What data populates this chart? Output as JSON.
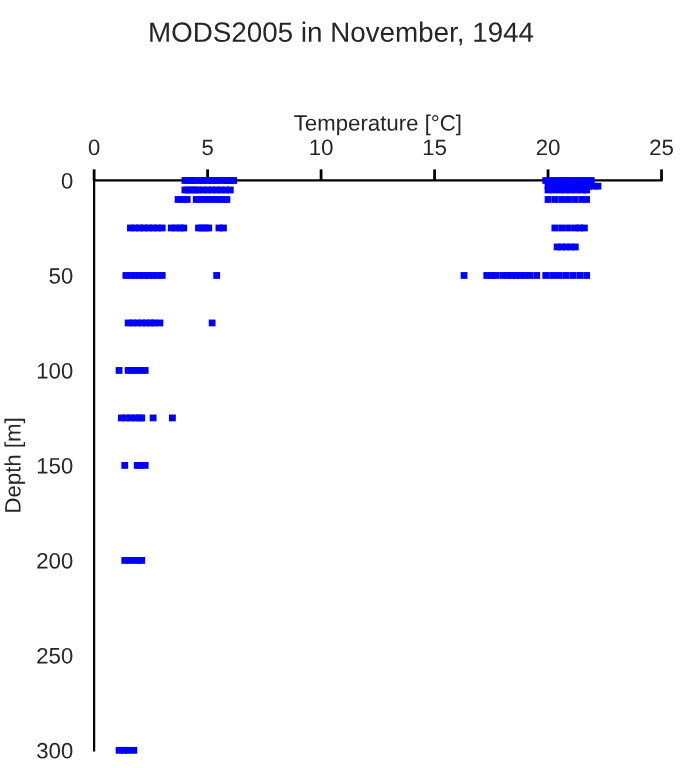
{
  "chart_data": {
    "type": "scatter",
    "title": "MODS2005 in November, 1944",
    "xlabel": "Temperature [°C]",
    "ylabel": "Depth [m]",
    "xlim": [
      0,
      25
    ],
    "xticks": [
      0,
      5,
      10,
      15,
      20,
      25
    ],
    "ylim": [
      300,
      0
    ],
    "yticks": [
      0,
      50,
      100,
      150,
      200,
      250,
      300
    ],
    "grid": false,
    "marker": "square",
    "series": [
      {
        "color": "#0000ff",
        "x": [
          4.0,
          4.15,
          4.3,
          4.45,
          4.7,
          4.8,
          5.0,
          5.15,
          5.3,
          5.45,
          5.7,
          5.85,
          6.0,
          6.15,
          19.9,
          20.1,
          20.3,
          20.5,
          20.7,
          20.9,
          21.1,
          21.3,
          21.5,
          21.7,
          21.9,
          20.0,
          20.2,
          20.4,
          20.6,
          20.8,
          21.0,
          21.2,
          21.4,
          21.6,
          21.8,
          22.0,
          22.2,
          4.0,
          4.15,
          4.3,
          4.45,
          4.6,
          4.8,
          5.0,
          5.2,
          5.4,
          5.6,
          5.8,
          6.0,
          20.0,
          20.25,
          20.5,
          20.75,
          21.0,
          21.25,
          21.5,
          21.7,
          3.7,
          3.9,
          4.1,
          4.5,
          4.7,
          4.9,
          5.1,
          5.3,
          5.5,
          5.7,
          5.85,
          20.0,
          20.3,
          20.6,
          20.9,
          21.2,
          21.5,
          21.7,
          1.6,
          1.8,
          2.0,
          2.2,
          2.4,
          2.6,
          2.8,
          3.0,
          3.4,
          3.6,
          3.8,
          3.95,
          4.6,
          4.75,
          4.9,
          5.05,
          5.5,
          5.7,
          20.3,
          20.6,
          20.9,
          21.2,
          21.4,
          21.6,
          20.4,
          20.6,
          20.8,
          21.0,
          21.2,
          1.4,
          1.6,
          1.8,
          2.0,
          2.2,
          2.4,
          2.6,
          2.8,
          3.0,
          5.4,
          16.3,
          17.3,
          17.5,
          17.7,
          18.0,
          18.2,
          18.4,
          18.6,
          18.8,
          19.0,
          19.2,
          19.5,
          19.9,
          20.2,
          20.5,
          20.8,
          21.1,
          21.4,
          21.7,
          1.5,
          1.7,
          1.9,
          2.1,
          2.3,
          2.5,
          2.65,
          2.9,
          5.2,
          1.1,
          1.5,
          1.7,
          1.9,
          2.1,
          2.25,
          1.2,
          1.4,
          1.6,
          1.8,
          2.0,
          2.1,
          2.6,
          3.45,
          1.35,
          1.9,
          2.05,
          2.25,
          1.35,
          1.55,
          1.75,
          1.95,
          2.1,
          1.1,
          1.3,
          1.5,
          1.75
        ],
        "values": [
          0,
          0,
          0,
          0,
          0,
          0,
          0,
          0,
          0,
          0,
          0,
          0,
          0,
          0,
          0,
          0,
          0,
          0,
          0,
          0,
          0,
          0,
          0,
          0,
          0,
          3,
          3,
          3,
          3,
          3,
          3,
          3,
          3,
          3,
          3,
          3,
          3,
          5,
          5,
          5,
          5,
          5,
          5,
          5,
          5,
          5,
          5,
          5,
          5,
          5,
          5,
          5,
          5,
          5,
          5,
          5,
          5,
          10,
          10,
          10,
          10,
          10,
          10,
          10,
          10,
          10,
          10,
          10,
          10,
          10,
          10,
          10,
          10,
          10,
          10,
          25,
          25,
          25,
          25,
          25,
          25,
          25,
          25,
          25,
          25,
          25,
          25,
          25,
          25,
          25,
          25,
          25,
          25,
          25,
          25,
          25,
          25,
          25,
          25,
          35,
          35,
          35,
          35,
          35,
          50,
          50,
          50,
          50,
          50,
          50,
          50,
          50,
          50,
          50,
          50,
          50,
          50,
          50,
          50,
          50,
          50,
          50,
          50,
          50,
          50,
          50,
          50,
          50,
          50,
          50,
          50,
          50,
          50,
          75,
          75,
          75,
          75,
          75,
          75,
          75,
          75,
          75,
          100,
          100,
          100,
          100,
          100,
          100,
          125,
          125,
          125,
          125,
          125,
          125,
          125,
          125,
          150,
          150,
          150,
          150,
          200,
          200,
          200,
          200,
          200,
          300,
          300,
          300,
          300
        ]
      }
    ]
  }
}
